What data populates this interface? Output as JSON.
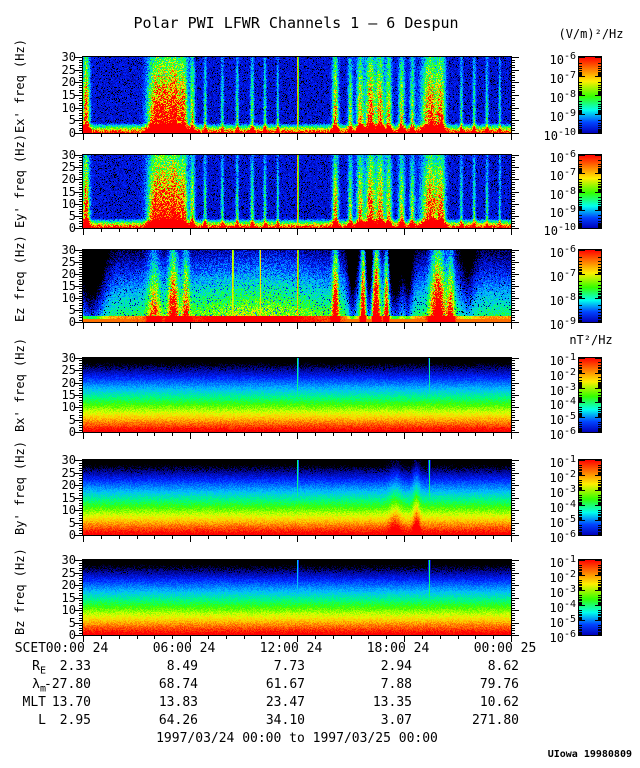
{
  "title": "Polar PWI LFWR Channels 1 – 6 Despun",
  "date_range": "1997/03/24 00:00 to 1997/03/25 00:00",
  "credit": "UIowa 19980809",
  "colors": {
    "background": "#ffffff",
    "axis": "#000000"
  },
  "chart_data": {
    "type": "heatmap",
    "title": "Polar PWI LFWR Channels 1 – 6 Despun",
    "x_axis": {
      "label": "SCET",
      "range_hours": [
        0,
        24
      ],
      "major_ticks": [
        "00:00 24",
        "06:00 24",
        "12:00 24",
        "18:00 24",
        "00:00 25"
      ],
      "minor_tick_every_hours": 1
    },
    "y_axis": {
      "ticks": [
        0,
        5,
        10,
        15,
        20,
        25,
        30
      ],
      "range": [
        0,
        30
      ],
      "unit": "Hz"
    },
    "colorbar_gradient": [
      [
        "#ff0000",
        0
      ],
      [
        "#ff7a00",
        0.16
      ],
      [
        "#ffee00",
        0.32
      ],
      [
        "#33ff00",
        0.52
      ],
      [
        "#00ffee",
        0.7
      ],
      [
        "#0044ff",
        0.86
      ],
      [
        "#0000bb",
        1
      ]
    ],
    "panels": [
      {
        "id": "ex",
        "label": "Ex' freq (Hz)",
        "style": "burst",
        "seed": 11,
        "unit_header": "(V/m)²/Hz",
        "cbar_exponents": [
          -6,
          -7,
          -8,
          -9,
          -10
        ],
        "events": [
          {
            "t": 0.006,
            "a": 1.05,
            "w": 0.006
          },
          {
            "t": 0.165,
            "a": 0.85,
            "w": 0.012
          },
          {
            "t": 0.19,
            "a": 1.0,
            "w": 0.014
          },
          {
            "t": 0.215,
            "a": 1.0,
            "w": 0.01
          },
          {
            "t": 0.235,
            "a": 0.9,
            "w": 0.007
          },
          {
            "t": 0.255,
            "a": 0.75,
            "w": 0.004
          },
          {
            "t": 0.285,
            "a": 0.5,
            "w": 0.0025
          },
          {
            "t": 0.325,
            "a": 0.45,
            "w": 0.0025
          },
          {
            "t": 0.36,
            "a": 0.5,
            "w": 0.0025
          },
          {
            "t": 0.395,
            "a": 0.55,
            "w": 0.003
          },
          {
            "t": 0.425,
            "a": 0.5,
            "w": 0.0025
          },
          {
            "t": 0.455,
            "a": 0.45,
            "w": 0.002
          },
          {
            "t": 0.502,
            "a": 1.0,
            "w": 0.0015,
            "line": true
          },
          {
            "t": 0.59,
            "a": 0.9,
            "w": 0.005
          },
          {
            "t": 0.625,
            "a": 0.65,
            "w": 0.004
          },
          {
            "t": 0.648,
            "a": 0.85,
            "w": 0.006
          },
          {
            "t": 0.672,
            "a": 1.05,
            "w": 0.008
          },
          {
            "t": 0.695,
            "a": 0.95,
            "w": 0.007
          },
          {
            "t": 0.715,
            "a": 0.8,
            "w": 0.005
          },
          {
            "t": 0.745,
            "a": 0.75,
            "w": 0.005
          },
          {
            "t": 0.77,
            "a": 0.65,
            "w": 0.004
          },
          {
            "t": 0.812,
            "a": 1.05,
            "w": 0.014
          },
          {
            "t": 0.838,
            "a": 0.8,
            "w": 0.007
          },
          {
            "t": 0.885,
            "a": 0.45,
            "w": 0.0025
          },
          {
            "t": 0.915,
            "a": 0.5,
            "w": 0.0025
          },
          {
            "t": 0.945,
            "a": 0.45,
            "w": 0.0025
          },
          {
            "t": 0.975,
            "a": 0.4,
            "w": 0.002
          }
        ]
      },
      {
        "id": "ey",
        "label": "Ey' freq (Hz)",
        "style": "burst",
        "seed": 29,
        "cbar_exponents": [
          -6,
          -7,
          -8,
          -9,
          -10
        ],
        "events": [
          {
            "t": 0.006,
            "a": 1.05,
            "w": 0.006
          },
          {
            "t": 0.165,
            "a": 0.85,
            "w": 0.012
          },
          {
            "t": 0.19,
            "a": 1.0,
            "w": 0.014
          },
          {
            "t": 0.215,
            "a": 1.0,
            "w": 0.01
          },
          {
            "t": 0.235,
            "a": 0.9,
            "w": 0.007
          },
          {
            "t": 0.255,
            "a": 0.75,
            "w": 0.004
          },
          {
            "t": 0.285,
            "a": 0.5,
            "w": 0.0025
          },
          {
            "t": 0.325,
            "a": 0.45,
            "w": 0.0025
          },
          {
            "t": 0.36,
            "a": 0.5,
            "w": 0.0025
          },
          {
            "t": 0.395,
            "a": 0.55,
            "w": 0.003
          },
          {
            "t": 0.425,
            "a": 0.5,
            "w": 0.0025
          },
          {
            "t": 0.455,
            "a": 0.45,
            "w": 0.002
          },
          {
            "t": 0.502,
            "a": 1.0,
            "w": 0.0015,
            "line": true
          },
          {
            "t": 0.59,
            "a": 0.9,
            "w": 0.005
          },
          {
            "t": 0.625,
            "a": 0.65,
            "w": 0.004
          },
          {
            "t": 0.648,
            "a": 0.85,
            "w": 0.006
          },
          {
            "t": 0.672,
            "a": 1.05,
            "w": 0.008
          },
          {
            "t": 0.695,
            "a": 0.95,
            "w": 0.007
          },
          {
            "t": 0.715,
            "a": 0.8,
            "w": 0.005
          },
          {
            "t": 0.745,
            "a": 0.75,
            "w": 0.005
          },
          {
            "t": 0.77,
            "a": 0.65,
            "w": 0.004
          },
          {
            "t": 0.812,
            "a": 1.05,
            "w": 0.014
          },
          {
            "t": 0.838,
            "a": 0.8,
            "w": 0.007
          },
          {
            "t": 0.885,
            "a": 0.45,
            "w": 0.0025
          },
          {
            "t": 0.915,
            "a": 0.5,
            "w": 0.0025
          },
          {
            "t": 0.945,
            "a": 0.45,
            "w": 0.0025
          },
          {
            "t": 0.975,
            "a": 0.4,
            "w": 0.002
          }
        ]
      },
      {
        "id": "ez",
        "label": "Ez freq (Hz)",
        "style": "diffuse",
        "seed": 47,
        "cbar_exponents": [
          -6,
          -7,
          -8,
          -9
        ],
        "events": [
          {
            "t": 0.018,
            "a": -0.55,
            "w": 0.022
          },
          {
            "t": 0.4,
            "a": 0.22,
            "w": 0.13
          },
          {
            "t": 0.165,
            "a": 0.5,
            "w": 0.01
          },
          {
            "t": 0.21,
            "a": 0.8,
            "w": 0.008
          },
          {
            "t": 0.24,
            "a": 0.6,
            "w": 0.006
          },
          {
            "t": 0.35,
            "a": 1.0,
            "w": 0.0015,
            "line": true
          },
          {
            "t": 0.414,
            "a": 0.85,
            "w": 0.0015,
            "line": true
          },
          {
            "t": 0.502,
            "a": 1.0,
            "w": 0.0015,
            "line": true
          },
          {
            "t": 0.59,
            "a": 0.9,
            "w": 0.005
          },
          {
            "t": 0.63,
            "a": -0.5,
            "w": 0.008
          },
          {
            "t": 0.655,
            "a": 1.0,
            "w": 0.004
          },
          {
            "t": 0.67,
            "a": -0.45,
            "w": 0.006
          },
          {
            "t": 0.685,
            "a": 1.1,
            "w": 0.006
          },
          {
            "t": 0.71,
            "a": 0.9,
            "w": 0.004
          },
          {
            "t": 0.73,
            "a": -0.5,
            "w": 0.012
          },
          {
            "t": 0.76,
            "a": -0.4,
            "w": 0.008
          },
          {
            "t": 0.83,
            "a": 1.0,
            "w": 0.012
          },
          {
            "t": 0.86,
            "a": 0.6,
            "w": 0.006
          },
          {
            "t": 0.9,
            "a": -0.25,
            "w": 0.012
          }
        ]
      },
      {
        "id": "bx",
        "label": "Bx' freq (Hz)",
        "style": "smooth",
        "seed": 61,
        "unit_header": "nT²/Hz",
        "cbar_exponents": [
          -1,
          -2,
          -3,
          -4,
          -5,
          -6
        ],
        "events": [
          {
            "t": 0.502,
            "a": 0.65,
            "w": 0.0012,
            "line": true
          },
          {
            "t": 0.81,
            "a": 0.5,
            "w": 0.0012,
            "line": true
          }
        ]
      },
      {
        "id": "by",
        "label": "By' freq (Hz)",
        "style": "smooth",
        "seed": 73,
        "cbar_exponents": [
          -1,
          -2,
          -3,
          -4,
          -5,
          -6
        ],
        "events": [
          {
            "t": 0.502,
            "a": 0.65,
            "w": 0.0012,
            "line": true
          },
          {
            "t": 0.73,
            "a": 0.2,
            "w": 0.01
          },
          {
            "t": 0.78,
            "a": 0.3,
            "w": 0.006
          },
          {
            "t": 0.81,
            "a": 0.55,
            "w": 0.0015,
            "line": true
          }
        ]
      },
      {
        "id": "bz",
        "label": "Bz freq (Hz)",
        "style": "smooth",
        "seed": 89,
        "cbar_exponents": [
          -1,
          -2,
          -3,
          -4,
          -5,
          -6
        ],
        "events": [
          {
            "t": 0.502,
            "a": 0.5,
            "w": 0.0012,
            "line": true
          },
          {
            "t": 0.81,
            "a": 0.55,
            "w": 0.0015,
            "line": true
          }
        ]
      }
    ],
    "ephemeris": [
      {
        "id": "scet",
        "base": "SCET",
        "sub": "",
        "values": [
          "00:00 24",
          "06:00 24",
          "12:00 24",
          "18:00 24",
          "00:00 25"
        ]
      },
      {
        "id": "re",
        "base": "R",
        "sub": "E",
        "values": [
          "2.33",
          "8.49",
          "7.73",
          "2.94",
          "8.62"
        ]
      },
      {
        "id": "lambda-m",
        "base": "λ",
        "sub": "m",
        "values": [
          "-27.80",
          "68.74",
          "61.67",
          "7.88",
          "79.76"
        ]
      },
      {
        "id": "mlt",
        "base": "MLT",
        "sub": "",
        "values": [
          "13.70",
          "13.83",
          "23.47",
          "13.35",
          "10.62"
        ]
      },
      {
        "id": "l",
        "base": "L",
        "sub": "",
        "values": [
          "2.95",
          "64.26",
          "34.10",
          "3.07",
          "271.80"
        ]
      }
    ]
  }
}
